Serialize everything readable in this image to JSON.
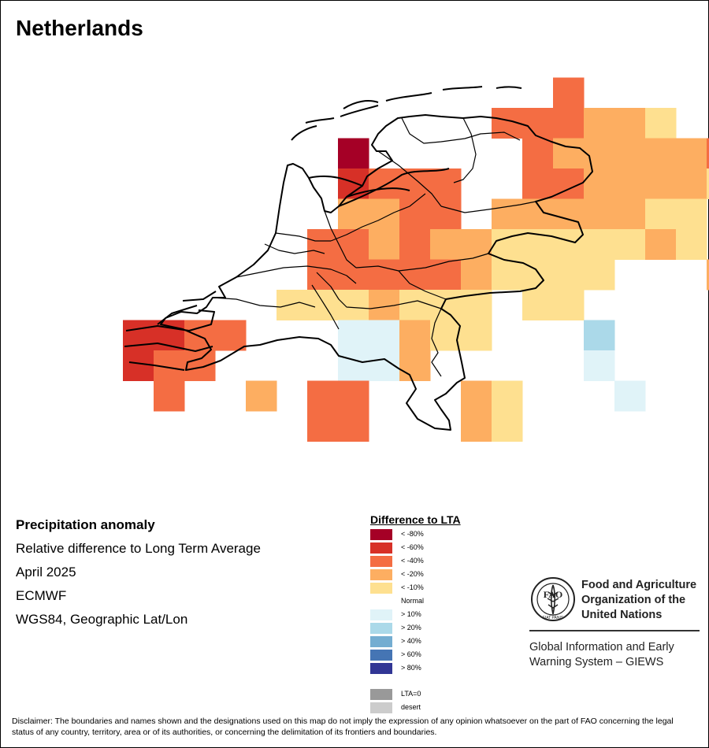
{
  "title": "Netherlands",
  "info": {
    "heading": "Precipitation anomaly",
    "subtitle": "Relative difference to Long Term Average",
    "period": "April 2025",
    "source": "ECMWF",
    "projection": "WGS84, Geographic Lat/Lon"
  },
  "legend": {
    "title": "Difference to LTA",
    "items": [
      {
        "label": "< -80%",
        "color": "#a50026"
      },
      {
        "label": "< -60%",
        "color": "#d73027"
      },
      {
        "label": "< -40%",
        "color": "#f46d43"
      },
      {
        "label": "< -20%",
        "color": "#fdae61"
      },
      {
        "label": "< -10%",
        "color": "#fee090"
      },
      {
        "label": "Normal",
        "color": "#ffffff"
      },
      {
        "label": "> 10%",
        "color": "#e0f3f8"
      },
      {
        "label": "> 20%",
        "color": "#abd9e9"
      },
      {
        "label": "> 40%",
        "color": "#74add1"
      },
      {
        "label": "> 60%",
        "color": "#4575b4"
      },
      {
        "label": "> 80%",
        "color": "#313695"
      }
    ],
    "extra": [
      {
        "label": "LTA=0",
        "color": "#999999"
      },
      {
        "label": "desert",
        "color": "#cccccc"
      }
    ]
  },
  "fao": {
    "name_line1": "Food and Agriculture",
    "name_line2": "Organization of the",
    "name_line3": "United Nations",
    "logo_text": "FAO",
    "motto": "FIAT PANIS",
    "giews_line1": "Global Information and Early",
    "giews_line2": "Warning System – GIEWS"
  },
  "disclaimer": "Disclaimer: The boundaries and names shown and the designations used on this map do not imply the expression of any opinion whatsoever on the part of FAO concerning the legal status of any country, territory, area or of its authorities, or concerning the delimitation of its frontiers and boundaries.",
  "map_grid": {
    "classes": {
      "1": "#a50026",
      "2": "#d73027",
      "3": "#f46d43",
      "4": "#fdae61",
      "5": "#fee090",
      "7": "#e0f3f8",
      "8": "#abd9e9"
    },
    "rows": [
      "....................",
      "..........3.........",
      "........333445......",
      "...1.....3444443....",
      "...2333..3344445555.",
      "...4433.4444455.....",
      "..3343445555545.....",
      "..3333345555...45...",
      ".5554555.55......7..",
      "...77455............",
      "...774.....8........",
      "..33...45...........",
      "..33...45...........",
      "........................",
      "........................"
    ],
    "bottom_rows": [
      "2233...........8....",
      "233............7....",
      ".3..4...........7..."
    ]
  }
}
